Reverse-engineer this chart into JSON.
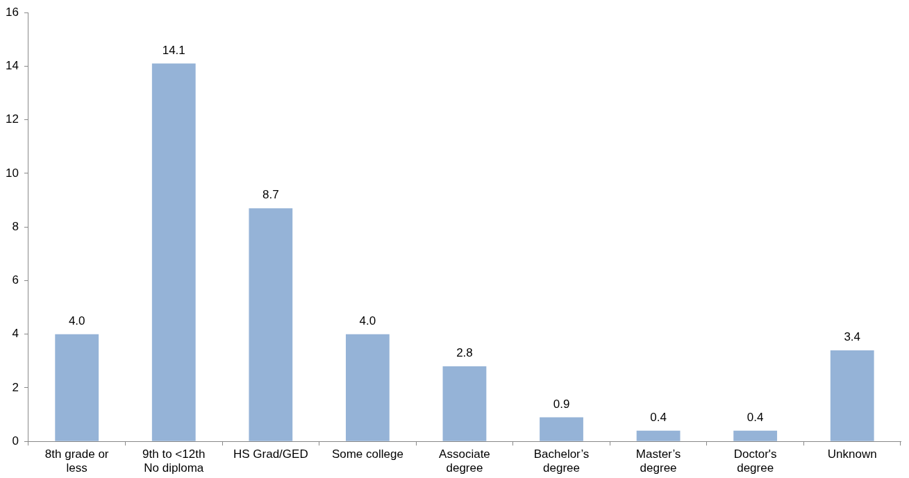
{
  "chart_data": {
    "type": "bar",
    "categories": [
      "8th grade or less",
      "9th to <12th No diploma",
      "HS Grad/GED",
      "Some college",
      "Associate degree",
      "Bachelor’s degree",
      "Master’s degree",
      "Doctor's degree",
      "Unknown"
    ],
    "values": [
      4.0,
      14.1,
      8.7,
      4.0,
      2.8,
      0.9,
      0.4,
      0.4,
      3.4
    ],
    "color": "#95b3d7",
    "ylim": [
      0,
      16
    ],
    "yticks": [
      0,
      2,
      4,
      6,
      8,
      10,
      12,
      14,
      16
    ],
    "value_labels": [
      "4.0",
      "14.1",
      "8.7",
      "4.0",
      "2.8",
      "0.9",
      "0.4",
      "0.4",
      "3.4"
    ]
  }
}
